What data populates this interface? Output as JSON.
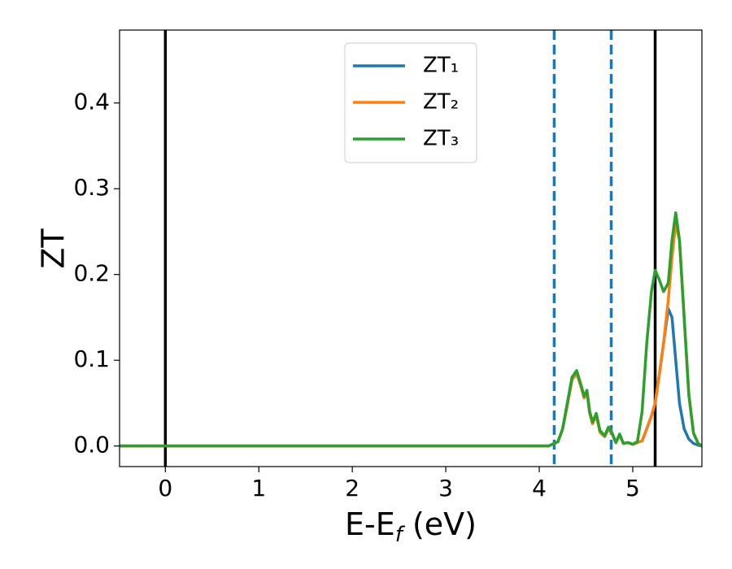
{
  "chart_data": {
    "type": "line",
    "ylabel": "ZT",
    "xlabel": [
      "E-E",
      "f",
      " (eV)"
    ],
    "xlim": [
      -0.49,
      5.74
    ],
    "ylim": [
      -0.024,
      0.485
    ],
    "xticks": [
      0,
      1,
      2,
      3,
      4,
      5
    ],
    "yticks": [
      {
        "value": 0,
        "label": "0.0"
      },
      0.1,
      0.2,
      0.3,
      0.4
    ],
    "legend": "upper center",
    "vlines": [
      {
        "x": 0,
        "color": "#000000",
        "style": "solid"
      },
      {
        "x": 4.16,
        "color": "#1f77b4",
        "style": "dashed"
      },
      {
        "x": 4.77,
        "color": "#1f77b4",
        "style": "dashed"
      },
      {
        "x": 5.24,
        "color": "#000000",
        "style": "solid"
      }
    ],
    "x": [
      -0.49,
      4.1,
      4.2,
      4.25,
      4.3,
      4.35,
      4.4,
      4.45,
      4.48,
      4.51,
      4.54,
      4.57,
      4.61,
      4.65,
      4.7,
      4.74,
      4.78,
      4.82,
      4.86,
      4.9,
      4.95,
      5.0,
      5.05,
      5.1,
      5.15,
      5.2,
      5.24,
      5.28,
      5.33,
      5.38,
      5.42,
      5.46,
      5.5,
      5.55,
      5.6,
      5.65,
      5.7,
      5.74
    ],
    "series": [
      {
        "name": "ZT₁",
        "color": "#1f77b4",
        "values": [
          0,
          0,
          0.005,
          0.02,
          0.048,
          0.077,
          0.085,
          0.068,
          0.056,
          0.063,
          0.038,
          0.026,
          0.036,
          0.016,
          0.011,
          0.02,
          0.014,
          0.004,
          0.013,
          0.003,
          0.004,
          0.002,
          0.004,
          0.006,
          0.02,
          0.035,
          0.05,
          0.08,
          0.12,
          0.16,
          0.15,
          0.1,
          0.05,
          0.02,
          0.008,
          0.003,
          0.001,
          0
        ]
      },
      {
        "name": "ZT₂",
        "color": "#ff7f0e",
        "values": [
          0,
          0,
          0.005,
          0.02,
          0.048,
          0.077,
          0.085,
          0.068,
          0.056,
          0.063,
          0.038,
          0.026,
          0.036,
          0.016,
          0.011,
          0.02,
          0.014,
          0.004,
          0.013,
          0.003,
          0.004,
          0.002,
          0.004,
          0.006,
          0.02,
          0.035,
          0.05,
          0.08,
          0.12,
          0.17,
          0.22,
          0.26,
          0.24,
          0.15,
          0.06,
          0.015,
          0.003,
          0
        ]
      },
      {
        "name": "ZT₃",
        "color": "#2ca02c",
        "values": [
          0,
          0,
          0.005,
          0.02,
          0.05,
          0.08,
          0.088,
          0.07,
          0.058,
          0.065,
          0.04,
          0.028,
          0.038,
          0.018,
          0.012,
          0.022,
          0.015,
          0.004,
          0.014,
          0.003,
          0.004,
          0.002,
          0.005,
          0.04,
          0.12,
          0.18,
          0.205,
          0.195,
          0.18,
          0.19,
          0.24,
          0.272,
          0.24,
          0.15,
          0.06,
          0.015,
          0.003,
          0
        ]
      }
    ]
  }
}
